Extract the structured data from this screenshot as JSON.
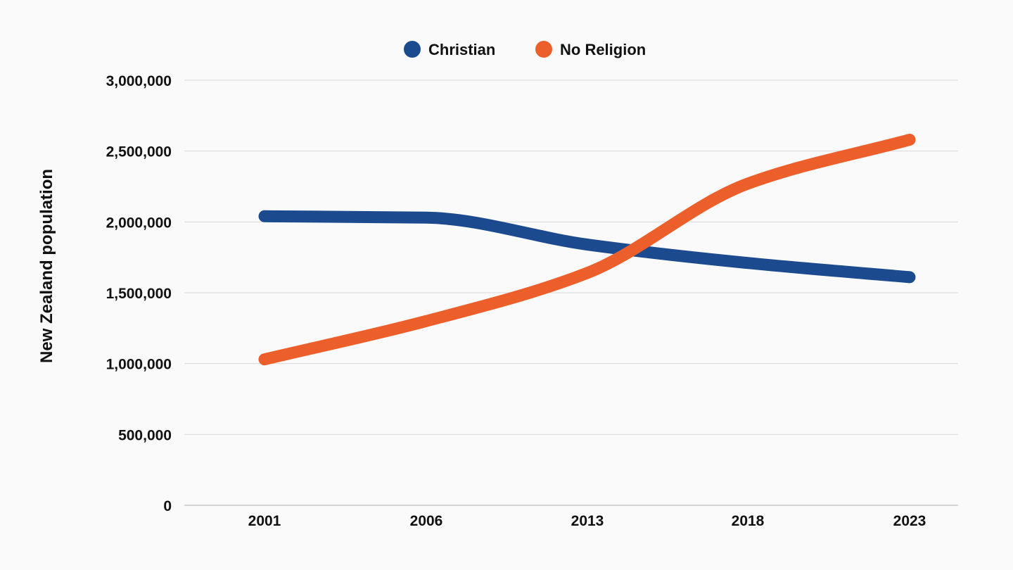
{
  "chart_data": {
    "type": "line",
    "title": "",
    "xlabel": "",
    "ylabel": "New Zealand population",
    "categories": [
      "2001",
      "2006",
      "2013",
      "2018",
      "2023"
    ],
    "ylim": [
      0,
      3000000
    ],
    "yticks": [
      0,
      500000,
      1000000,
      1500000,
      2000000,
      2500000,
      3000000
    ],
    "ytick_labels": [
      "0",
      "500,000",
      "1,000,000",
      "1,500,000",
      "2,000,000",
      "2,500,000",
      "3,000,000"
    ],
    "grid": true,
    "legend_position": "top-center",
    "series": [
      {
        "name": "Christian",
        "color": "#1b4a8e",
        "values": [
          2040000,
          2030000,
          1840000,
          1710000,
          1610000
        ]
      },
      {
        "name": "No Religion",
        "color": "#ec5f2a",
        "values": [
          1030000,
          1300000,
          1640000,
          2270000,
          2580000
        ]
      }
    ]
  }
}
